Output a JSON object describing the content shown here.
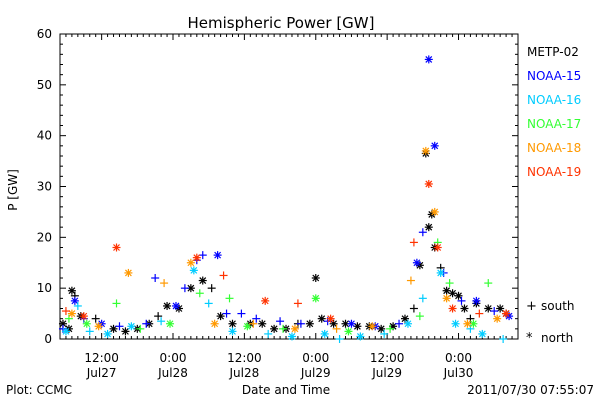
{
  "colors": {
    "background": "#ffffff",
    "axis": "#000000",
    "METP-02": "#000000",
    "NOAA-15": "#0000ff",
    "NOAA-16": "#00ccff",
    "NOAA-17": "#33ff33",
    "NOAA-18": "#ff9900",
    "NOAA-19": "#ff3300"
  },
  "chart_data": {
    "type": "scatter",
    "title": "Hemispheric Power [GW]",
    "xlabel": "Date and Time",
    "ylabel": "P [GW]",
    "ylim": [
      0,
      60
    ],
    "yticks": [
      0,
      10,
      20,
      30,
      40,
      50,
      60
    ],
    "grid": false,
    "x_is_time": true,
    "xtime_range": [
      "2011-07-27T05:00",
      "2011-07-30T10:00"
    ],
    "xticks": [
      {
        "time": "2011-07-27T12:00",
        "top": "12:00",
        "bottom": "Jul27"
      },
      {
        "time": "2011-07-28T00:00",
        "top": "0:00",
        "bottom": "Jul28"
      },
      {
        "time": "2011-07-28T12:00",
        "top": "12:00",
        "bottom": "Jul28"
      },
      {
        "time": "2011-07-29T00:00",
        "top": "0:00",
        "bottom": "Jul29"
      },
      {
        "time": "2011-07-29T12:00",
        "top": "12:00",
        "bottom": "Jul29"
      },
      {
        "time": "2011-07-30T00:00",
        "top": "0:00",
        "bottom": "Jul30"
      }
    ],
    "marker_legend": [
      {
        "symbol": "+",
        "label": "south"
      },
      {
        "symbol": "*",
        "label": "north"
      }
    ],
    "legend_placement": "right",
    "footer_left": "Plot: CCMC",
    "footer_right": "2011/07/30 07:55:07",
    "series": [
      {
        "name": "METP-02",
        "points": [
          {
            "x": "2011-07-27T05:30",
            "y": 3,
            "m": "*"
          },
          {
            "x": "2011-07-27T06:30",
            "y": 2,
            "m": "*"
          },
          {
            "x": "2011-07-27T07:00",
            "y": 9.5,
            "m": "*"
          },
          {
            "x": "2011-07-27T07:30",
            "y": 8.5,
            "m": "+"
          },
          {
            "x": "2011-07-27T08:30",
            "y": 4.5,
            "m": "*"
          },
          {
            "x": "2011-07-27T11:00",
            "y": 4,
            "m": "+"
          },
          {
            "x": "2011-07-27T14:00",
            "y": 2,
            "m": "*"
          },
          {
            "x": "2011-07-27T16:00",
            "y": 1.5,
            "m": "*"
          },
          {
            "x": "2011-07-27T18:00",
            "y": 2,
            "m": "*"
          },
          {
            "x": "2011-07-27T20:00",
            "y": 3,
            "m": "*"
          },
          {
            "x": "2011-07-27T21:30",
            "y": 4.5,
            "m": "+"
          },
          {
            "x": "2011-07-27T23:00",
            "y": 6.5,
            "m": "*"
          },
          {
            "x": "2011-07-28T01:00",
            "y": 6,
            "m": "*"
          },
          {
            "x": "2011-07-28T03:00",
            "y": 10,
            "m": "*"
          },
          {
            "x": "2011-07-28T05:00",
            "y": 11.5,
            "m": "*"
          },
          {
            "x": "2011-07-28T06:30",
            "y": 10,
            "m": "+"
          },
          {
            "x": "2011-07-28T08:00",
            "y": 4.5,
            "m": "*"
          },
          {
            "x": "2011-07-28T10:00",
            "y": 3,
            "m": "*"
          },
          {
            "x": "2011-07-28T13:00",
            "y": 3,
            "m": "*"
          },
          {
            "x": "2011-07-28T15:00",
            "y": 3,
            "m": "*"
          },
          {
            "x": "2011-07-28T17:00",
            "y": 2,
            "m": "*"
          },
          {
            "x": "2011-07-28T19:00",
            "y": 2,
            "m": "*"
          },
          {
            "x": "2011-07-28T21:00",
            "y": 3,
            "m": "+"
          },
          {
            "x": "2011-07-28T23:00",
            "y": 3,
            "m": "*"
          },
          {
            "x": "2011-07-29T00:00",
            "y": 12,
            "m": "*"
          },
          {
            "x": "2011-07-29T01:00",
            "y": 4,
            "m": "*"
          },
          {
            "x": "2011-07-29T03:00",
            "y": 3,
            "m": "*"
          },
          {
            "x": "2011-07-29T05:00",
            "y": 3,
            "m": "*"
          },
          {
            "x": "2011-07-29T07:00",
            "y": 2.5,
            "m": "*"
          },
          {
            "x": "2011-07-29T09:00",
            "y": 2.5,
            "m": "*"
          },
          {
            "x": "2011-07-29T11:00",
            "y": 2,
            "m": "*"
          },
          {
            "x": "2011-07-29T13:00",
            "y": 2.5,
            "m": "*"
          },
          {
            "x": "2011-07-29T15:00",
            "y": 4,
            "m": "*"
          },
          {
            "x": "2011-07-29T16:30",
            "y": 6,
            "m": "+"
          },
          {
            "x": "2011-07-29T17:30",
            "y": 14.5,
            "m": "*"
          },
          {
            "x": "2011-07-29T18:30",
            "y": 36.5,
            "m": "*"
          },
          {
            "x": "2011-07-29T19:00",
            "y": 22,
            "m": "*"
          },
          {
            "x": "2011-07-29T19:30",
            "y": 24.5,
            "m": "*"
          },
          {
            "x": "2011-07-29T20:00",
            "y": 18,
            "m": "*"
          },
          {
            "x": "2011-07-29T21:00",
            "y": 14,
            "m": "+"
          },
          {
            "x": "2011-07-29T22:00",
            "y": 9.5,
            "m": "*"
          },
          {
            "x": "2011-07-29T23:00",
            "y": 9,
            "m": "*"
          },
          {
            "x": "2011-07-30T00:00",
            "y": 8.5,
            "m": "*"
          },
          {
            "x": "2011-07-30T01:00",
            "y": 6,
            "m": "*"
          },
          {
            "x": "2011-07-30T02:00",
            "y": 4,
            "m": "+"
          },
          {
            "x": "2011-07-30T03:00",
            "y": 7,
            "m": "*"
          },
          {
            "x": "2011-07-30T05:00",
            "y": 6,
            "m": "*"
          },
          {
            "x": "2011-07-30T07:00",
            "y": 6,
            "m": "*"
          },
          {
            "x": "2011-07-30T08:00",
            "y": 5,
            "m": "*"
          }
        ]
      },
      {
        "name": "NOAA-15",
        "points": [
          {
            "x": "2011-07-27T05:30",
            "y": 2,
            "m": "+"
          },
          {
            "x": "2011-07-27T07:30",
            "y": 7.5,
            "m": "*"
          },
          {
            "x": "2011-07-27T09:00",
            "y": 4,
            "m": "+"
          },
          {
            "x": "2011-07-27T12:00",
            "y": 3,
            "m": "*"
          },
          {
            "x": "2011-07-27T15:00",
            "y": 2.5,
            "m": "+"
          },
          {
            "x": "2011-07-27T19:30",
            "y": 3,
            "m": "+"
          },
          {
            "x": "2011-07-27T21:00",
            "y": 12,
            "m": "+"
          },
          {
            "x": "2011-07-28T00:30",
            "y": 6.5,
            "m": "*"
          },
          {
            "x": "2011-07-28T02:00",
            "y": 10,
            "m": "+"
          },
          {
            "x": "2011-07-28T04:00",
            "y": 15.5,
            "m": "+"
          },
          {
            "x": "2011-07-28T05:00",
            "y": 16.5,
            "m": "+"
          },
          {
            "x": "2011-07-28T07:30",
            "y": 16.5,
            "m": "*"
          },
          {
            "x": "2011-07-28T09:00",
            "y": 5,
            "m": "+"
          },
          {
            "x": "2011-07-28T11:30",
            "y": 5,
            "m": "+"
          },
          {
            "x": "2011-07-28T14:00",
            "y": 4,
            "m": "+"
          },
          {
            "x": "2011-07-28T18:00",
            "y": 3.5,
            "m": "+"
          },
          {
            "x": "2011-07-28T21:30",
            "y": 3,
            "m": "+"
          },
          {
            "x": "2011-07-29T02:00",
            "y": 3.5,
            "m": "+"
          },
          {
            "x": "2011-07-29T06:00",
            "y": 3,
            "m": "*"
          },
          {
            "x": "2011-07-29T10:00",
            "y": 2.5,
            "m": "*"
          },
          {
            "x": "2011-07-29T14:00",
            "y": 3,
            "m": "+"
          },
          {
            "x": "2011-07-29T17:00",
            "y": 15,
            "m": "*"
          },
          {
            "x": "2011-07-29T18:00",
            "y": 21,
            "m": "+"
          },
          {
            "x": "2011-07-29T19:00",
            "y": 55,
            "m": "*"
          },
          {
            "x": "2011-07-29T20:00",
            "y": 38,
            "m": "*"
          },
          {
            "x": "2011-07-29T21:30",
            "y": 13,
            "m": "+"
          },
          {
            "x": "2011-07-30T00:30",
            "y": 7.5,
            "m": "+"
          },
          {
            "x": "2011-07-30T03:00",
            "y": 7.5,
            "m": "*"
          },
          {
            "x": "2011-07-30T06:00",
            "y": 5.5,
            "m": "+"
          },
          {
            "x": "2011-07-30T08:30",
            "y": 4.5,
            "m": "*"
          }
        ]
      },
      {
        "name": "NOAA-16",
        "points": [
          {
            "x": "2011-07-27T06:00",
            "y": 1.5,
            "m": "*"
          },
          {
            "x": "2011-07-27T08:00",
            "y": 6.5,
            "m": "+"
          },
          {
            "x": "2011-07-27T10:00",
            "y": 1.5,
            "m": "+"
          },
          {
            "x": "2011-07-27T13:00",
            "y": 1,
            "m": "*"
          },
          {
            "x": "2011-07-27T17:00",
            "y": 2.5,
            "m": "*"
          },
          {
            "x": "2011-07-27T22:00",
            "y": 3.5,
            "m": "+"
          },
          {
            "x": "2011-07-28T03:30",
            "y": 13.5,
            "m": "*"
          },
          {
            "x": "2011-07-28T06:00",
            "y": 7,
            "m": "+"
          },
          {
            "x": "2011-07-28T10:00",
            "y": 1.5,
            "m": "*"
          },
          {
            "x": "2011-07-28T16:00",
            "y": 1,
            "m": "+"
          },
          {
            "x": "2011-07-28T20:00",
            "y": 0.5,
            "m": "*"
          },
          {
            "x": "2011-07-29T01:30",
            "y": 1,
            "m": "*"
          },
          {
            "x": "2011-07-29T04:00",
            "y": 0,
            "m": "+"
          },
          {
            "x": "2011-07-29T07:30",
            "y": 0.5,
            "m": "*"
          },
          {
            "x": "2011-07-29T11:30",
            "y": 1,
            "m": "+"
          },
          {
            "x": "2011-07-29T15:30",
            "y": 3,
            "m": "*"
          },
          {
            "x": "2011-07-29T18:00",
            "y": 8,
            "m": "+"
          },
          {
            "x": "2011-07-29T21:00",
            "y": 13,
            "m": "*"
          },
          {
            "x": "2011-07-29T23:30",
            "y": 3,
            "m": "*"
          },
          {
            "x": "2011-07-30T02:00",
            "y": 2,
            "m": "+"
          },
          {
            "x": "2011-07-30T04:00",
            "y": 1,
            "m": "*"
          },
          {
            "x": "2011-07-30T07:30",
            "y": 0,
            "m": "+"
          }
        ]
      },
      {
        "name": "NOAA-17",
        "points": [
          {
            "x": "2011-07-27T06:30",
            "y": 4,
            "m": "+"
          },
          {
            "x": "2011-07-27T09:30",
            "y": 3,
            "m": "*"
          },
          {
            "x": "2011-07-27T14:30",
            "y": 7,
            "m": "+"
          },
          {
            "x": "2011-07-27T18:30",
            "y": 2,
            "m": "+"
          },
          {
            "x": "2011-07-27T23:30",
            "y": 3,
            "m": "*"
          },
          {
            "x": "2011-07-28T04:30",
            "y": 9,
            "m": "+"
          },
          {
            "x": "2011-07-28T09:30",
            "y": 8,
            "m": "+"
          },
          {
            "x": "2011-07-28T12:30",
            "y": 2.5,
            "m": "*"
          },
          {
            "x": "2011-07-28T18:30",
            "y": 2,
            "m": "+"
          },
          {
            "x": "2011-07-29T00:00",
            "y": 8,
            "m": "*"
          },
          {
            "x": "2011-07-29T05:30",
            "y": 1.5,
            "m": "*"
          },
          {
            "x": "2011-07-29T12:30",
            "y": 2,
            "m": "+"
          },
          {
            "x": "2011-07-29T17:30",
            "y": 4.5,
            "m": "+"
          },
          {
            "x": "2011-07-29T20:30",
            "y": 19,
            "m": "+"
          },
          {
            "x": "2011-07-29T22:30",
            "y": 11,
            "m": "+"
          },
          {
            "x": "2011-07-30T02:30",
            "y": 3,
            "m": "*"
          },
          {
            "x": "2011-07-30T05:00",
            "y": 11,
            "m": "+"
          }
        ]
      },
      {
        "name": "NOAA-18",
        "points": [
          {
            "x": "2011-07-27T07:00",
            "y": 5,
            "m": "*"
          },
          {
            "x": "2011-07-27T11:30",
            "y": 2.5,
            "m": "*"
          },
          {
            "x": "2011-07-27T16:30",
            "y": 13,
            "m": "*"
          },
          {
            "x": "2011-07-27T22:30",
            "y": 11,
            "m": "+"
          },
          {
            "x": "2011-07-28T03:00",
            "y": 15,
            "m": "*"
          },
          {
            "x": "2011-07-28T07:00",
            "y": 3,
            "m": "*"
          },
          {
            "x": "2011-07-28T13:30",
            "y": 3,
            "m": "+"
          },
          {
            "x": "2011-07-28T20:30",
            "y": 2,
            "m": "*"
          },
          {
            "x": "2011-07-29T03:30",
            "y": 2,
            "m": "+"
          },
          {
            "x": "2011-07-29T09:30",
            "y": 2.5,
            "m": "*"
          },
          {
            "x": "2011-07-29T16:00",
            "y": 11.5,
            "m": "+"
          },
          {
            "x": "2011-07-29T18:30",
            "y": 37,
            "m": "*"
          },
          {
            "x": "2011-07-29T20:00",
            "y": 25,
            "m": "*"
          },
          {
            "x": "2011-07-29T22:00",
            "y": 8,
            "m": "*"
          },
          {
            "x": "2011-07-30T01:30",
            "y": 3,
            "m": "*"
          },
          {
            "x": "2011-07-30T06:30",
            "y": 4,
            "m": "*"
          }
        ]
      },
      {
        "name": "NOAA-19",
        "points": [
          {
            "x": "2011-07-27T06:00",
            "y": 5.5,
            "m": "+"
          },
          {
            "x": "2011-07-27T09:00",
            "y": 4.5,
            "m": "*"
          },
          {
            "x": "2011-07-27T14:30",
            "y": 18,
            "m": "*"
          },
          {
            "x": "2011-07-28T04:00",
            "y": 16,
            "m": "*"
          },
          {
            "x": "2011-07-28T08:30",
            "y": 12.5,
            "m": "+"
          },
          {
            "x": "2011-07-28T15:30",
            "y": 7.5,
            "m": "*"
          },
          {
            "x": "2011-07-28T21:00",
            "y": 7,
            "m": "+"
          },
          {
            "x": "2011-07-29T02:30",
            "y": 4,
            "m": "*"
          },
          {
            "x": "2011-07-29T16:30",
            "y": 19,
            "m": "+"
          },
          {
            "x": "2011-07-29T19:00",
            "y": 30.5,
            "m": "*"
          },
          {
            "x": "2011-07-29T20:30",
            "y": 18,
            "m": "*"
          },
          {
            "x": "2011-07-29T23:00",
            "y": 6,
            "m": "*"
          },
          {
            "x": "2011-07-30T03:30",
            "y": 5,
            "m": "+"
          },
          {
            "x": "2011-07-30T08:00",
            "y": 5,
            "m": "*"
          }
        ]
      }
    ]
  }
}
